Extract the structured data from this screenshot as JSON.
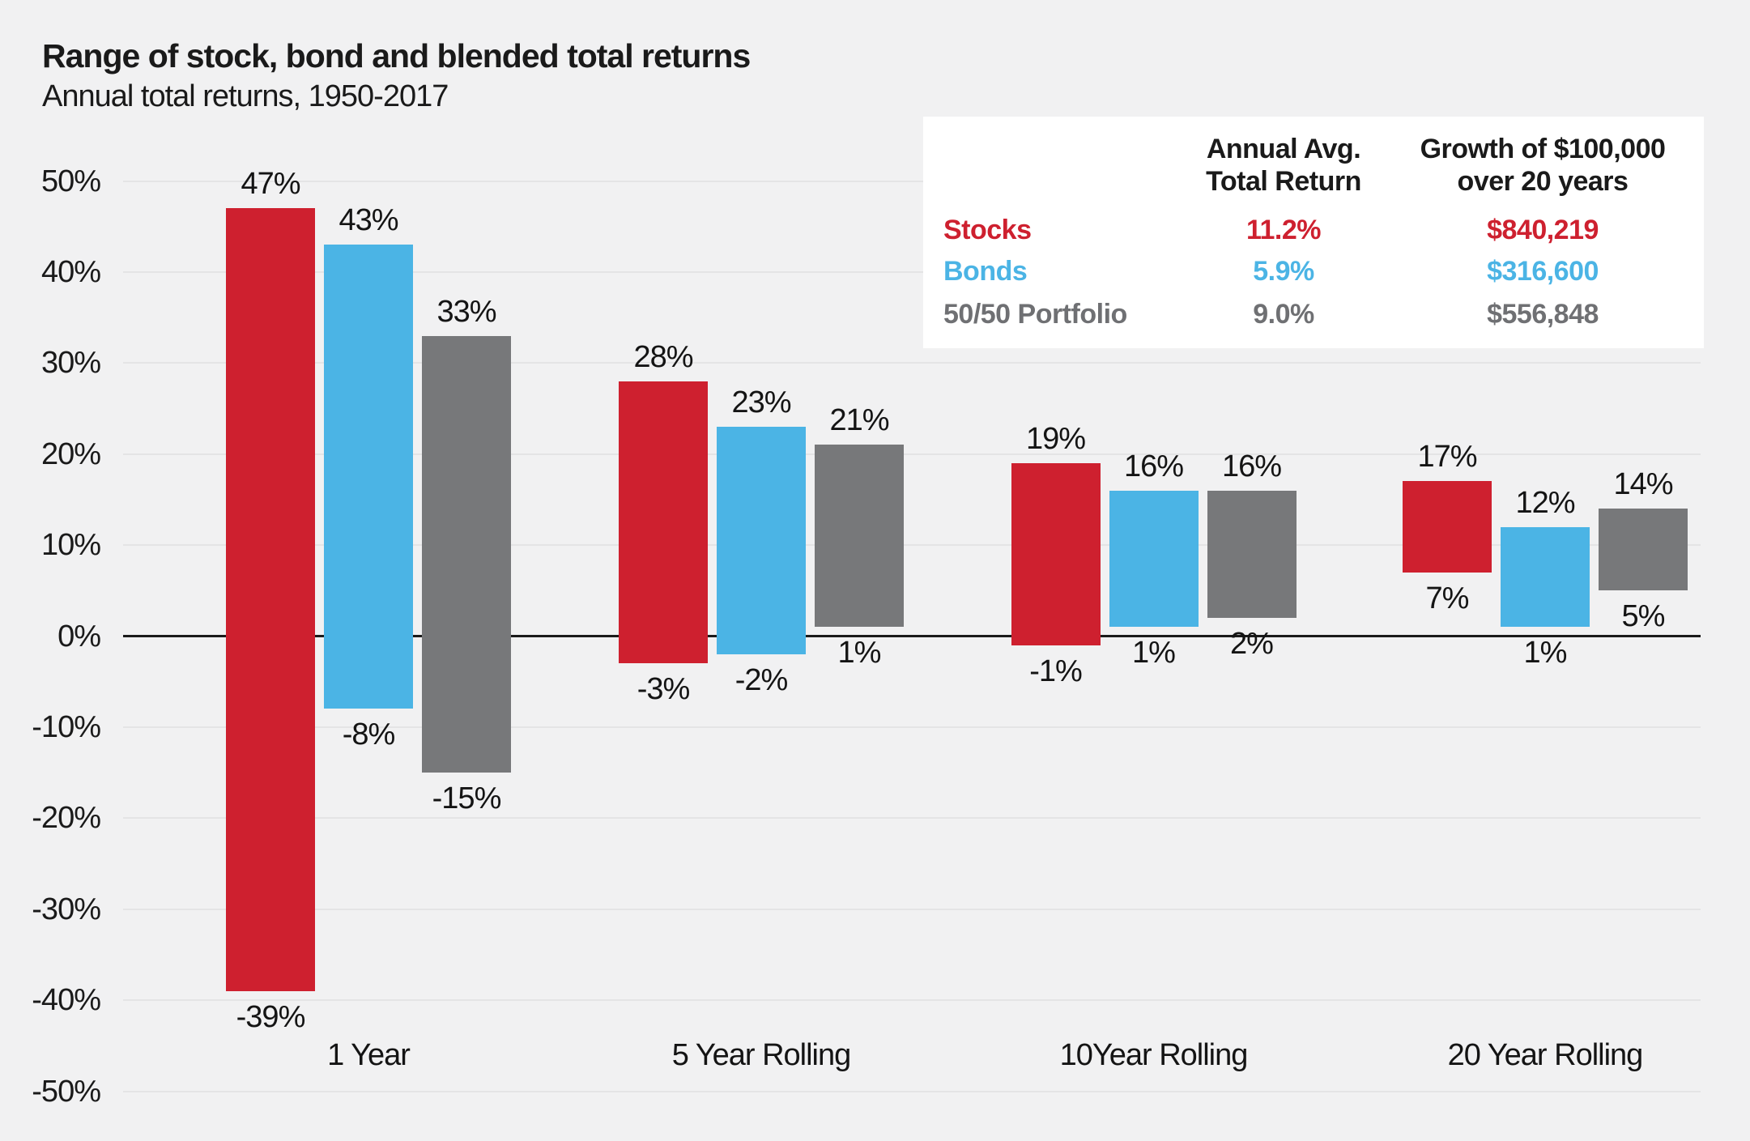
{
  "title": "Range of stock, bond and blended total returns",
  "subtitle": "Annual total returns, 1950-2017",
  "colors": {
    "stocks_red": "#CE202F",
    "bonds_blue": "#4BB4E5",
    "portfolio_gray": "#77787A",
    "legend_portfolio_gray": "#6F7073",
    "background": "#F1F1F2",
    "gridline": "#E4E4E5",
    "zero_line": "#1A1A1A",
    "text": "#1A1A1A",
    "legend_background": "#FFFFFF"
  },
  "legend": {
    "headers": [
      {
        "line1": "Annual Avg.",
        "line2": "Total Return"
      },
      {
        "line1": "Growth of $100,000",
        "line2": "over 20 years"
      }
    ],
    "rows": [
      {
        "label": "Stocks",
        "annual_return": "11.2%",
        "growth": "$840,219",
        "color": "#CE202F"
      },
      {
        "label": "Bonds",
        "annual_return": "5.9%",
        "growth": "$316,600",
        "color": "#4BB4E5"
      },
      {
        "label": "50/50 Portfolio",
        "annual_return": "9.0%",
        "growth": "$556,848",
        "color": "#6F7073"
      }
    ]
  },
  "chart_data": {
    "type": "bar",
    "subtype": "floating-range-columns",
    "title": "Range of stock, bond and blended total returns",
    "subtitle": "Annual total returns, 1950-2017",
    "categories": [
      "1 Year",
      "5 Year Rolling",
      "10Year Rolling",
      "20 Year Rolling"
    ],
    "series": [
      {
        "name": "Stocks",
        "color": "#CE202F",
        "ranges_min_max_pct": [
          [
            -39,
            47
          ],
          [
            -3,
            28
          ],
          [
            -1,
            19
          ],
          [
            7,
            17
          ]
        ]
      },
      {
        "name": "Bonds",
        "color": "#4BB4E5",
        "ranges_min_max_pct": [
          [
            -8,
            43
          ],
          [
            -2,
            23
          ],
          [
            1,
            16
          ],
          [
            1,
            12
          ]
        ]
      },
      {
        "name": "50/50 Portfolio",
        "color": "#77787A",
        "ranges_min_max_pct": [
          [
            -15,
            33
          ],
          [
            1,
            21
          ],
          [
            2,
            16
          ],
          [
            5,
            14
          ]
        ]
      }
    ],
    "y_axis": {
      "min": -50,
      "max": 50,
      "step": 10,
      "tick_suffix": "%",
      "tick_labels": [
        "50%",
        "40%",
        "30%",
        "20%",
        "10%",
        "0%",
        "-10%",
        "-20%",
        "-30%",
        "-40%",
        "-50%"
      ]
    },
    "grid": true,
    "value_labels": "max above bar, min below bar, formatted as integer percent",
    "legend_position": "top-right table"
  }
}
